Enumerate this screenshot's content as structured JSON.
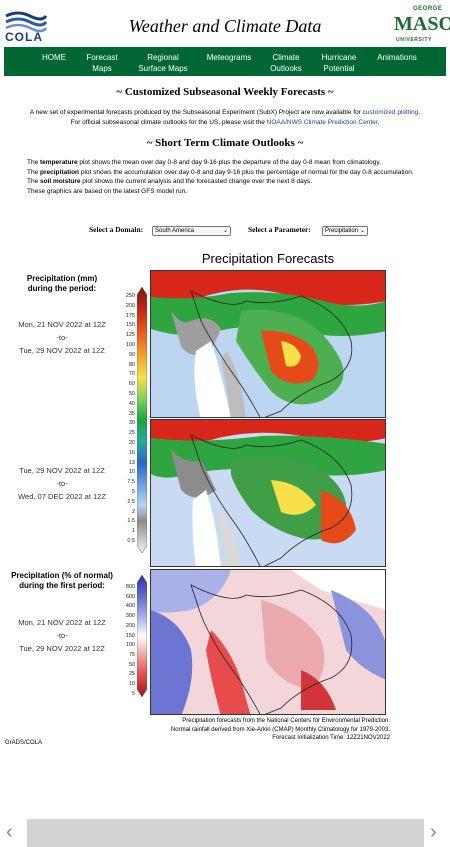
{
  "header": {
    "cola_logo_text": "COLA",
    "title": "Weather and Climate Data",
    "gmu_george": "GEORGE",
    "gmu_mason": "MASON",
    "gmu_university": "UNIVERSITY"
  },
  "nav": [
    {
      "line1": "HOME",
      "line2": ""
    },
    {
      "line1": "Forecast",
      "line2": "Maps"
    },
    {
      "line1": "Regional",
      "line2": "Surface Maps"
    },
    {
      "line1": "Meteograms",
      "line2": ""
    },
    {
      "line1": "Climate",
      "line2": "Outlooks"
    },
    {
      "line1": "Hurricane",
      "line2": "Potential"
    },
    {
      "line1": "Animations",
      "line2": ""
    }
  ],
  "subx": {
    "title": "~ Customized Subseasonal Weekly Forecasts ~",
    "line1_pre": "A new set of experimental forecasts produced by the Subseasonal Experiment (SubX) Project are now available for ",
    "line1_link": "customized plotting",
    "line1_post": ".",
    "line2_pre": "For official subseasonal climate outlooks for the US, please visit the ",
    "line2_link": "NOAA/NWS Climate Prediction Center",
    "line2_post": "."
  },
  "short_term": {
    "title": "~ Short Term Climate Outlooks ~",
    "p1_pre": "The ",
    "p1_bold": "temperature",
    "p1_post": " plot shows the mean over day 0-8 and day 9-16 plus the departure of the day 0-8 mean from climatology.",
    "p2_pre": "The ",
    "p2_bold": "precipitation",
    "p2_post": " plot shows the accumulation over day 0-8 and day 9-16 plus the percentage of normal for the day 0-8 accumulation.",
    "p3_pre": "The ",
    "p3_bold": "soil moisture",
    "p3_post": " plot shows the current analysis and the forecasted change over the next 8 days.",
    "p4": "These graphics are based on the latest GFS model run."
  },
  "controls": {
    "domain_label": "Select a Domain:",
    "domain_value": "South America",
    "parameter_label": "Select a Parameter:",
    "parameter_value": "Precipitation"
  },
  "figure": {
    "title": "Precipitation Forecasts",
    "label_mm_1": "Precipitation (mm)",
    "label_mm_2": "during the period:",
    "p1_start": "Mon, 21 NOV 2022 at 12Z",
    "p1_to": "-to-",
    "p1_end": "Tue, 29 NOV 2022 at 12Z",
    "p2_start": "Tue, 29 NOV 2022 at 12Z",
    "p2_to": "-to-",
    "p2_end": "Wed, 07 DEC 2022 at 12Z",
    "label_pct_1": "Precipitation (% of normal)",
    "label_pct_2": "during the first period:",
    "p3_start": "Mon, 21 NOV 2022 at 12Z",
    "p3_to": "-to-",
    "p3_end": "Tue, 29 NOV 2022 at 12Z",
    "mm_scale": [
      "250",
      "200",
      "175",
      "150",
      "125",
      "100",
      "90",
      "80",
      "70",
      "60",
      "50",
      "40",
      "35",
      "30",
      "25",
      "20",
      "16",
      "13",
      "10",
      "7.5",
      "5",
      "2.5",
      "2",
      "1.5",
      "1",
      "0.5"
    ],
    "pct_scale": [
      "800",
      "600",
      "400",
      "300",
      "200",
      "150",
      "100",
      "75",
      "50",
      "25",
      "10",
      "5"
    ],
    "credit_1": "Precipitation forecasts from the National Centers for Environmental Prediction.",
    "credit_2": "Normal rainfall derived from Xie-Arkin (CMAP) Monthly Climatology for 1979-2003.",
    "credit_3": "Forecast Initialization Time: 12Z21NOV2022",
    "grads": "GrADS/COLA"
  },
  "colors": {
    "nav_bg": "#006633",
    "link": "#1f3d99"
  }
}
